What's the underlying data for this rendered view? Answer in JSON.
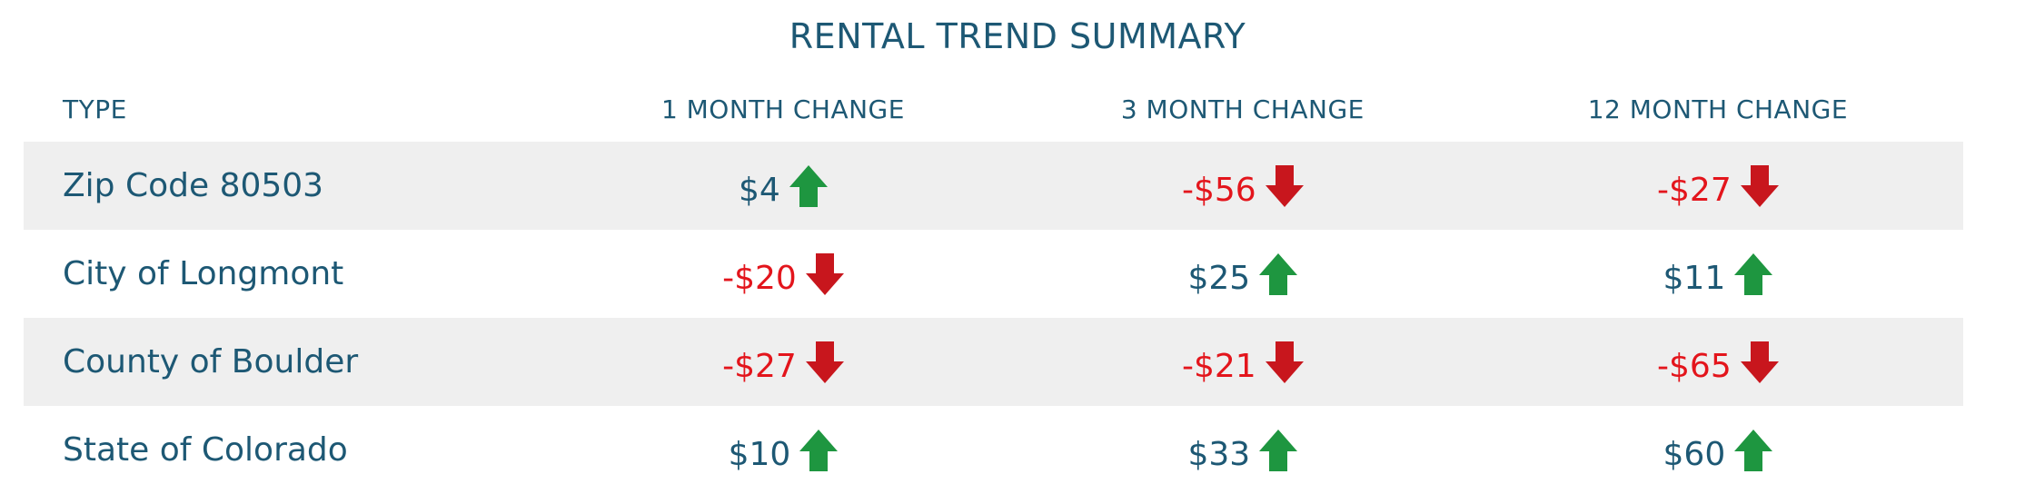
{
  "header": {
    "title": "RENTAL TREND SUMMARY"
  },
  "table": {
    "columns": [
      "TYPE",
      "1 MONTH CHANGE",
      "3 MONTH CHANGE",
      "12 MONTH CHANGE"
    ],
    "rows": [
      [
        "Zip Code 80503",
        "$4",
        "-$56",
        "-$27"
      ],
      [
        "City of Longmont",
        "-$20",
        "$25",
        "$11"
      ],
      [
        "County of Boulder",
        "-$27",
        "-$21",
        "-$65"
      ],
      [
        "State of Colorado",
        "$10",
        "$33",
        "$60"
      ]
    ]
  }
}
